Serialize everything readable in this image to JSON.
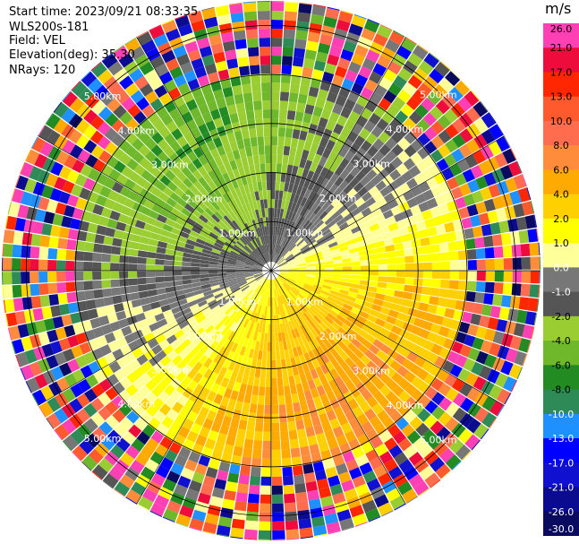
{
  "header": {
    "start_time": "Start time: 2023/09/21 08:33:35",
    "instrument": "WLS200s-181",
    "field": "Field: VEL",
    "elevation": "Elevation(deg): 35.30",
    "nrays": "NRays: 120"
  },
  "chart_data": {
    "type": "heatmap",
    "projection": "polar-ppi",
    "field": "VEL",
    "units": "m/s",
    "n_rays": 120,
    "max_range_km": 5.5,
    "range_ring_labels": [
      "1.00km",
      "2.00km",
      "3.00km",
      "4.00km",
      "5.00km"
    ],
    "range_rings_km": [
      1,
      2,
      3,
      4,
      5
    ],
    "grid": true,
    "colorbar": {
      "title": "m/s",
      "placement": "right",
      "ticks": [
        "26.0",
        "21.0",
        "17.0",
        "13.0",
        "10.0",
        "8.0",
        "6.0",
        "4.0",
        "2.0",
        "1.0",
        "0.0",
        "-1.0",
        "-2.0",
        "-4.0",
        "-6.0",
        "-8.0",
        "-10.0",
        "-13.0",
        "-17.0",
        "-21.0",
        "-26.0",
        "-30.0"
      ],
      "colors": [
        "#ff3fb4",
        "#ee0c3c",
        "#ff2600",
        "#ff5a2d",
        "#ff6c4e",
        "#ff8c3a",
        "#ffaa00",
        "#ffd000",
        "#ffff00",
        "#ffff99",
        "#777777",
        "#555555",
        "#9acd32",
        "#6fb82c",
        "#228b22",
        "#2e8b57",
        "#1e90ff",
        "#0000ff",
        "#1010d0",
        "#0b0b90",
        "#0a0a60"
      ]
    }
  }
}
